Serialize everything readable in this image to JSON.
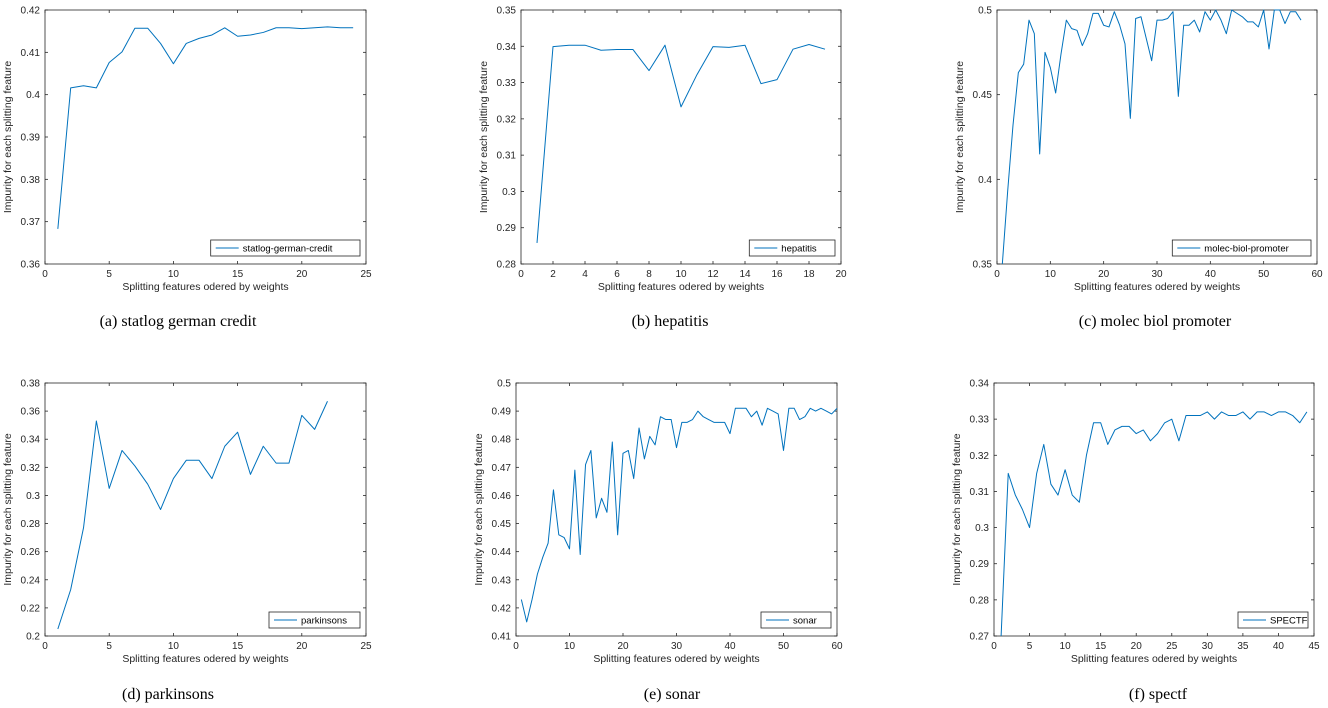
{
  "chart_data": [
    {
      "id": "a",
      "type": "line",
      "caption": "(a) statlog german credit",
      "xlabel": "Splitting features odered by weights",
      "ylabel": "Impurity for each splitting feature",
      "xlim": [
        0,
        25
      ],
      "ylim": [
        0.36,
        0.42
      ],
      "xticks": [
        "0",
        "5",
        "10",
        "15",
        "20",
        "25"
      ],
      "yticks": [
        "0.36",
        "0.37",
        "0.38",
        "0.39",
        "0.4",
        "0.41",
        "0.42"
      ],
      "legend_position": "bottom-right",
      "grid": false,
      "series": [
        {
          "name": "statlog-german-credit",
          "color": "#0072BD",
          "x": [
            1,
            2,
            3,
            4,
            5,
            6,
            7,
            8,
            9,
            10,
            11,
            12,
            13,
            14,
            15,
            16,
            17,
            18,
            19,
            20,
            21,
            22,
            23,
            24
          ],
          "y": [
            0.3683,
            0.4016,
            0.4021,
            0.4016,
            0.4076,
            0.4101,
            0.4157,
            0.4157,
            0.4121,
            0.4073,
            0.4121,
            0.4133,
            0.4141,
            0.4158,
            0.4138,
            0.4141,
            0.4147,
            0.4158,
            0.4158,
            0.4156,
            0.4158,
            0.416,
            0.4158,
            0.4158
          ]
        }
      ]
    },
    {
      "id": "b",
      "type": "line",
      "caption": "(b) hepatitis",
      "xlabel": "Splitting features odered by weights",
      "ylabel": "Impurity for each splitting feature",
      "xlim": [
        0,
        20
      ],
      "ylim": [
        0.28,
        0.35
      ],
      "xticks": [
        "0",
        "2",
        "4",
        "6",
        "8",
        "10",
        "12",
        "14",
        "16",
        "18",
        "20"
      ],
      "yticks": [
        "0.28",
        "0.29",
        "0.3",
        "0.31",
        "0.32",
        "0.33",
        "0.34",
        "0.35"
      ],
      "legend_position": "bottom-right",
      "grid": false,
      "series": [
        {
          "name": "hepatitis",
          "color": "#0072BD",
          "x": [
            1,
            2,
            3,
            4,
            5,
            6,
            7,
            8,
            9,
            10,
            11,
            12,
            13,
            14,
            15,
            16,
            17,
            18,
            19
          ],
          "y": [
            0.2858,
            0.3399,
            0.3403,
            0.3403,
            0.3389,
            0.3391,
            0.3391,
            0.3333,
            0.3403,
            0.3233,
            0.3322,
            0.3399,
            0.3397,
            0.3403,
            0.3297,
            0.3308,
            0.3392,
            0.3405,
            0.3392
          ]
        }
      ]
    },
    {
      "id": "c",
      "type": "line",
      "caption": "(c) molec biol promoter",
      "xlabel": "Splitting features odered by weights",
      "ylabel": "Impurity for each splitting feature",
      "xlim": [
        0,
        60
      ],
      "ylim": [
        0.35,
        0.5
      ],
      "xticks": [
        "0",
        "10",
        "20",
        "30",
        "40",
        "50",
        "60"
      ],
      "yticks": [
        "0.35",
        "0.4",
        "0.45",
        "0.5"
      ],
      "yticks_values": [
        0.35,
        0.4,
        0.45,
        0.5
      ],
      "legend_position": "bottom-right",
      "grid": false,
      "series": [
        {
          "name": "molec-biol-promoter",
          "color": "#0072BD",
          "x": [
            1,
            2,
            3,
            4,
            5,
            6,
            7,
            8,
            9,
            10,
            11,
            12,
            13,
            14,
            15,
            16,
            17,
            18,
            19,
            20,
            21,
            22,
            23,
            24,
            25,
            26,
            27,
            28,
            29,
            30,
            31,
            32,
            33,
            34,
            35,
            36,
            37,
            38,
            39,
            40,
            41,
            42,
            43,
            44,
            45,
            46,
            47,
            48,
            49,
            50,
            51,
            52,
            53,
            54,
            55,
            56,
            57
          ],
          "y": [
            0.35,
            0.393,
            0.432,
            0.463,
            0.468,
            0.494,
            0.486,
            0.415,
            0.475,
            0.466,
            0.451,
            0.474,
            0.494,
            0.489,
            0.488,
            0.479,
            0.486,
            0.498,
            0.498,
            0.491,
            0.49,
            0.499,
            0.491,
            0.48,
            0.436,
            0.495,
            0.496,
            0.483,
            0.47,
            0.494,
            0.494,
            0.495,
            0.499,
            0.449,
            0.491,
            0.491,
            0.494,
            0.487,
            0.499,
            0.494,
            0.5,
            0.494,
            0.486,
            0.5,
            0.498,
            0.496,
            0.493,
            0.493,
            0.49,
            0.5,
            0.477,
            0.5,
            0.5,
            0.492,
            0.499,
            0.499,
            0.494
          ]
        }
      ]
    },
    {
      "id": "d",
      "type": "line",
      "caption": "(d) parkinsons",
      "xlabel": "Splitting features odered by weights",
      "ylabel": "Impurity for each splitting feature",
      "xlim": [
        0,
        25
      ],
      "ylim": [
        0.2,
        0.38
      ],
      "xticks": [
        "0",
        "5",
        "10",
        "15",
        "20",
        "25"
      ],
      "yticks": [
        "0.2",
        "0.22",
        "0.24",
        "0.26",
        "0.28",
        "0.3",
        "0.32",
        "0.34",
        "0.36",
        "0.38"
      ],
      "legend_position": "bottom-right",
      "grid": false,
      "series": [
        {
          "name": "parkinsons",
          "color": "#0072BD",
          "x": [
            1,
            2,
            3,
            4,
            5,
            6,
            7,
            8,
            9,
            10,
            11,
            12,
            13,
            14,
            15,
            16,
            17,
            18,
            19,
            20,
            21,
            22
          ],
          "y": [
            0.205,
            0.233,
            0.277,
            0.353,
            0.305,
            0.332,
            0.321,
            0.308,
            0.29,
            0.312,
            0.325,
            0.325,
            0.312,
            0.335,
            0.345,
            0.315,
            0.335,
            0.323,
            0.323,
            0.357,
            0.347,
            0.367
          ]
        }
      ]
    },
    {
      "id": "e",
      "type": "line",
      "caption": "(e) sonar",
      "xlabel": "Splitting features odered by weights",
      "ylabel": "Impurity for each splitting feature",
      "xlim": [
        0,
        60
      ],
      "ylim": [
        0.41,
        0.5
      ],
      "xticks": [
        "0",
        "10",
        "20",
        "30",
        "40",
        "50",
        "60"
      ],
      "yticks": [
        "0.41",
        "0.42",
        "0.43",
        "0.44",
        "0.45",
        "0.46",
        "0.47",
        "0.48",
        "0.49",
        "0.5"
      ],
      "legend_position": "bottom-right",
      "grid": false,
      "series": [
        {
          "name": "sonar",
          "color": "#0072BD",
          "x": [
            1,
            2,
            3,
            4,
            5,
            6,
            7,
            8,
            9,
            10,
            11,
            12,
            13,
            14,
            15,
            16,
            17,
            18,
            19,
            20,
            21,
            22,
            23,
            24,
            25,
            26,
            27,
            28,
            29,
            30,
            31,
            32,
            33,
            34,
            35,
            36,
            37,
            38,
            39,
            40,
            41,
            42,
            43,
            44,
            45,
            46,
            47,
            48,
            49,
            50,
            51,
            52,
            53,
            54,
            55,
            56,
            57,
            58,
            59,
            60
          ],
          "y": [
            0.423,
            0.415,
            0.423,
            0.432,
            0.438,
            0.443,
            0.462,
            0.446,
            0.445,
            0.441,
            0.469,
            0.439,
            0.471,
            0.476,
            0.452,
            0.459,
            0.454,
            0.479,
            0.446,
            0.475,
            0.476,
            0.466,
            0.484,
            0.473,
            0.481,
            0.478,
            0.488,
            0.487,
            0.487,
            0.477,
            0.486,
            0.486,
            0.487,
            0.49,
            0.488,
            0.487,
            0.486,
            0.486,
            0.486,
            0.482,
            0.491,
            0.491,
            0.491,
            0.488,
            0.49,
            0.485,
            0.491,
            0.49,
            0.489,
            0.476,
            0.491,
            0.491,
            0.487,
            0.488,
            0.491,
            0.49,
            0.491,
            0.49,
            0.489,
            0.491
          ]
        }
      ]
    },
    {
      "id": "f",
      "type": "line",
      "caption": "(f) spectf",
      "xlabel": "Splitting features odered by weights",
      "ylabel": "Impurity for each splitting feature",
      "xlim": [
        0,
        45
      ],
      "ylim": [
        0.27,
        0.34
      ],
      "xticks": [
        "0",
        "5",
        "10",
        "15",
        "20",
        "25",
        "30",
        "35",
        "40",
        "45"
      ],
      "yticks": [
        "0.27",
        "0.28",
        "0.29",
        "0.3",
        "0.31",
        "0.32",
        "0.33",
        "0.34"
      ],
      "legend_position": "bottom-right",
      "grid": false,
      "series": [
        {
          "name": "SPECTF",
          "color": "#0072BD",
          "x": [
            1,
            2,
            3,
            4,
            5,
            6,
            7,
            8,
            9,
            10,
            11,
            12,
            13,
            14,
            15,
            16,
            17,
            18,
            19,
            20,
            21,
            22,
            23,
            24,
            25,
            26,
            27,
            28,
            29,
            30,
            31,
            32,
            33,
            34,
            35,
            36,
            37,
            38,
            39,
            40,
            41,
            42,
            43,
            44
          ],
          "y": [
            0.27,
            0.315,
            0.309,
            0.305,
            0.3,
            0.315,
            0.323,
            0.312,
            0.309,
            0.316,
            0.309,
            0.307,
            0.32,
            0.329,
            0.329,
            0.323,
            0.327,
            0.328,
            0.328,
            0.326,
            0.327,
            0.324,
            0.326,
            0.329,
            0.33,
            0.324,
            0.331,
            0.331,
            0.331,
            0.332,
            0.33,
            0.332,
            0.331,
            0.331,
            0.332,
            0.33,
            0.332,
            0.332,
            0.331,
            0.332,
            0.332,
            0.331,
            0.329,
            0.332
          ]
        }
      ]
    }
  ]
}
